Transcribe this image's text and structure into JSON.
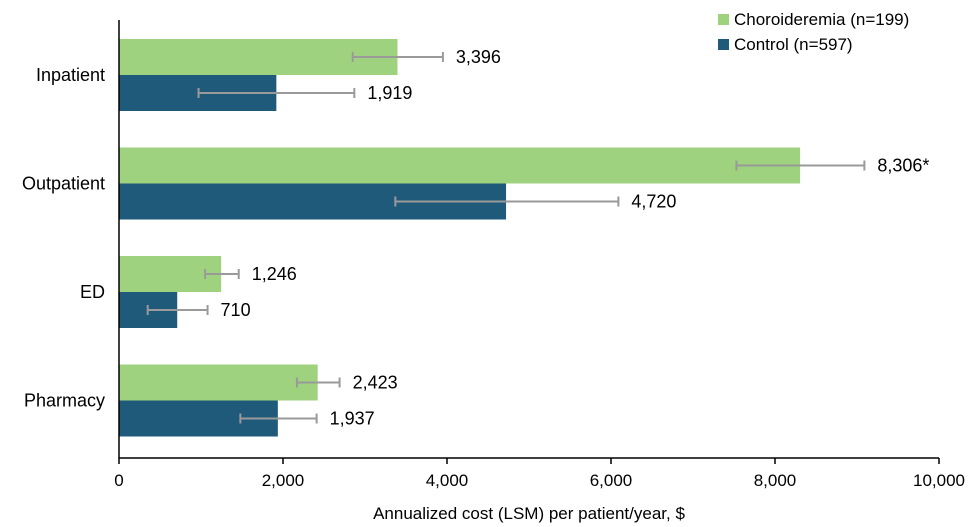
{
  "chart_data": {
    "type": "bar",
    "orientation": "horizontal",
    "categories": [
      "Inpatient",
      "Outpatient",
      "ED",
      "Pharmacy"
    ],
    "series": [
      {
        "name": "Choroideremia (n=199)",
        "color": "#9fd27f",
        "values": [
          3396,
          8306,
          1246,
          2423
        ],
        "labels": [
          "3,396",
          "8,306*",
          "1,246",
          "2,423"
        ],
        "error_low": [
          2850,
          7530,
          1050,
          2170
        ],
        "error_high": [
          3950,
          9090,
          1460,
          2690
        ]
      },
      {
        "name": "Control (n=597)",
        "color": "#1f5a7a",
        "values": [
          1919,
          4720,
          710,
          1937
        ],
        "labels": [
          "1,919",
          "4,720",
          "710",
          "1,937"
        ],
        "error_low": [
          970,
          3370,
          350,
          1480
        ],
        "error_high": [
          2870,
          6090,
          1080,
          2410
        ]
      }
    ],
    "xlabel": "Annualized cost (LSM) per patient/year, $",
    "ylabel": "",
    "xlim": [
      0,
      10000
    ],
    "xticks": [
      0,
      2000,
      4000,
      6000,
      8000,
      10000
    ],
    "xtick_labels": [
      "0",
      "2,000",
      "4,000",
      "6,000",
      "8,000",
      "10,000"
    ],
    "error_bar_color": "#9a9a9a",
    "grid": false,
    "legend_position": "top-right"
  }
}
